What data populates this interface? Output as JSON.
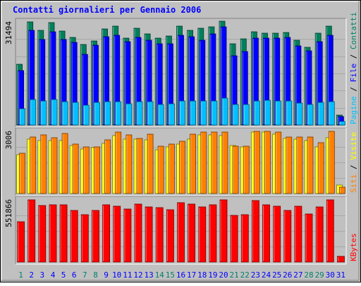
{
  "chart_data": {
    "type": "bar",
    "title": "Contatti giornalieri per Gennaio 2006",
    "colors": {
      "background": "#C0C0C0",
      "title": "#0000FF",
      "weekday_label": "#0000FF",
      "weekend_label": "#00806A",
      "contatti": "#00805C",
      "file": "#0000FF",
      "pagine": "#00C0FF",
      "visite": "#FFFF00",
      "siti": "#FF8000",
      "kbytes": "#FF0000"
    },
    "categories": [
      "1",
      "2",
      "3",
      "4",
      "5",
      "6",
      "7",
      "8",
      "9",
      "10",
      "11",
      "12",
      "13",
      "14",
      "15",
      "16",
      "17",
      "18",
      "19",
      "20",
      "21",
      "22",
      "23",
      "24",
      "25",
      "26",
      "27",
      "28",
      "29",
      "30",
      "31"
    ],
    "weekend_days": [
      "1",
      "7",
      "8",
      "14",
      "15",
      "21",
      "22",
      "28",
      "29"
    ],
    "panels": [
      {
        "id": "hits",
        "ymax_label": "31494",
        "ymax": 31494,
        "legend": [
          {
            "text": "Pagine",
            "color": "#00C0FF"
          },
          {
            "text": " / ",
            "color": "#000000"
          },
          {
            "text": "File",
            "color": "#0000FF"
          },
          {
            "text": " / ",
            "color": "#000000"
          },
          {
            "text": "Contatti",
            "color": "#00805C"
          }
        ],
        "series": [
          {
            "name": "Contatti",
            "values": [
              18500,
              31494,
              28900,
              31300,
              28700,
              26800,
              24600,
              25600,
              29300,
              30300,
              26600,
              29600,
              27900,
              26600,
              27200,
              30100,
              28900,
              29600,
              30000,
              31700,
              24700,
              26300,
              28500,
              28000,
              28000,
              28300,
              25900,
              23700,
              28100,
              30300,
              3000
            ]
          },
          {
            "name": "File",
            "values": [
              16600,
              28800,
              26100,
              28400,
              26100,
              25200,
              21500,
              24300,
              27000,
              27300,
              25400,
              26800,
              25900,
              24800,
              24900,
              27400,
              26900,
              25900,
              27900,
              29900,
              21200,
              22500,
              26600,
              26500,
              26500,
              26700,
              24100,
              22600,
              25500,
              27500,
              2500
            ]
          },
          {
            "name": "Pagine",
            "values": [
              5000,
              7700,
              7300,
              7700,
              7200,
              7000,
              6000,
              7000,
              7200,
              7200,
              6500,
              7200,
              7200,
              6200,
              6500,
              7300,
              7300,
              7300,
              7400,
              8100,
              6300,
              6200,
              7300,
              7600,
              7400,
              7300,
              6700,
              6200,
              7000,
              7100,
              1000
            ]
          }
        ]
      },
      {
        "id": "visits",
        "ymax_label": "3006",
        "ymax": 3006,
        "legend": [
          {
            "text": "Siti",
            "color": "#FF8000"
          },
          {
            "text": " / ",
            "color": "#000000"
          },
          {
            "text": "Visite",
            "color": "#FFFF00"
          }
        ],
        "series": [
          {
            "name": "Visite",
            "values": [
              1870,
              2620,
              2550,
              2550,
              2550,
              2310,
              2160,
              2220,
              2420,
              2790,
              2640,
              2620,
              2610,
              2130,
              2260,
              2390,
              2620,
              2850,
              2820,
              2790,
              2320,
              2260,
              2960,
              2960,
              2880,
              2660,
              2620,
              2560,
              2270,
              2700,
              400
            ]
          },
          {
            "name": "Siti",
            "values": [
              1950,
              2720,
              2820,
              2690,
              2890,
              2390,
              2250,
              2250,
              2590,
              2980,
              2850,
              2680,
              2880,
              2300,
              2380,
              2520,
              2880,
              2980,
              2980,
              2980,
              2300,
              2280,
              3006,
              3006,
              2980,
              2720,
              2720,
              2720,
              2450,
              3006,
              310
            ]
          }
        ]
      },
      {
        "id": "bytes",
        "ymax_label": "551866",
        "ymax": 551866,
        "legend": [
          {
            "text": "KBytes",
            "color": "#FF0000"
          }
        ],
        "series": [
          {
            "name": "KBytes",
            "values": [
              356000,
              551866,
              500000,
              507000,
              507000,
              458000,
              422000,
              458000,
              506000,
              498000,
              468000,
              512000,
              492000,
              482000,
              464000,
              527000,
              512000,
              490000,
              507000,
              551866,
              417000,
              423000,
              543000,
              506000,
              498000,
              456000,
              494000,
              429000,
              487000,
              551866,
              50000
            ]
          }
        ]
      }
    ]
  }
}
